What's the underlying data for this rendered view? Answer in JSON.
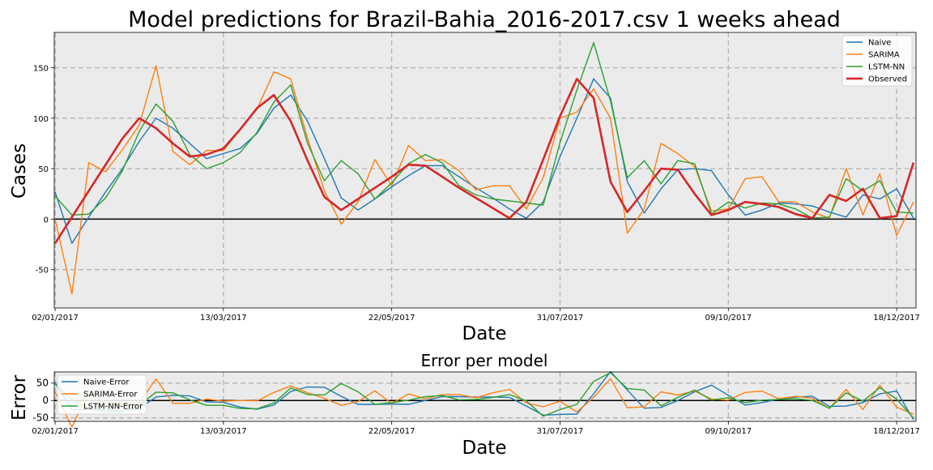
{
  "chart_data": [
    {
      "type": "line",
      "title": "Model predictions for Brazil-Bahia_2016-2017.csv 1 weeks ahead",
      "xlabel": "Date",
      "ylabel": "Cases",
      "ylim": [
        -88,
        185
      ],
      "x_tick_labels": [
        "02/01/2017",
        "13/03/2017",
        "22/05/2017",
        "31/07/2017",
        "09/10/2017",
        "18/12/2017"
      ],
      "y_ticks": [
        -50,
        0,
        50,
        100,
        150
      ],
      "grid": true,
      "legend_position": "top-right",
      "x_unit": "weeks since 02/01/2017",
      "series": [
        {
          "name": "Naive",
          "color": "#1f77b4",
          "x": [
            0,
            1,
            2,
            3,
            4,
            5,
            6,
            7,
            8,
            9,
            10,
            11,
            12,
            13,
            14,
            15,
            16,
            17,
            18,
            19,
            20,
            21,
            22,
            23,
            24,
            25,
            26,
            27,
            28,
            29,
            30,
            31,
            32,
            33,
            34,
            35,
            36,
            37,
            38,
            39,
            40,
            41,
            42,
            43,
            44,
            45,
            46,
            47,
            48,
            49,
            50,
            51
          ],
          "values": [
            27,
            -24,
            2,
            27,
            50,
            77,
            100,
            90,
            75,
            60,
            65,
            70,
            85,
            110,
            123,
            97,
            60,
            21,
            9,
            20,
            32,
            43,
            53,
            53,
            42,
            31,
            21,
            10,
            1,
            17,
            62,
            100,
            139,
            120,
            37,
            6,
            30,
            49,
            50,
            48,
            24,
            4,
            9,
            16,
            15,
            13,
            7,
            2,
            24,
            20,
            30,
            1
          ]
        },
        {
          "name": "SARIMA",
          "color": "#ff7f0e",
          "x": [
            0,
            1,
            2,
            3,
            4,
            5,
            6,
            7,
            8,
            9,
            10,
            11,
            12,
            13,
            14,
            15,
            16,
            17,
            18,
            19,
            20,
            21,
            22,
            23,
            24,
            25,
            26,
            27,
            28,
            29,
            30,
            31,
            32,
            33,
            34,
            35,
            36,
            37,
            38,
            39,
            40,
            41,
            42,
            43,
            44,
            45,
            46,
            47,
            48,
            49,
            50,
            51
          ],
          "values": [
            0,
            -74,
            56,
            47,
            69,
            93,
            152,
            67,
            54,
            68,
            68,
            89,
            109,
            146,
            139,
            80,
            28,
            -5,
            17,
            59,
            33,
            73,
            58,
            59,
            48,
            29,
            33,
            33,
            10,
            41,
            100,
            106,
            129,
            100,
            -14,
            10,
            75,
            65,
            52,
            8,
            10,
            40,
            42,
            17,
            17,
            7,
            1,
            50,
            4,
            45,
            -16,
            17
          ]
        },
        {
          "name": "LSTM-NN",
          "color": "#2ca02c",
          "x": [
            0,
            1,
            2,
            3,
            4,
            5,
            6,
            7,
            8,
            9,
            10,
            11,
            12,
            13,
            14,
            15,
            16,
            17,
            18,
            19,
            20,
            21,
            22,
            23,
            24,
            25,
            26,
            27,
            28,
            29,
            30,
            31,
            32,
            33,
            34,
            35,
            36,
            37,
            38,
            39,
            40,
            41,
            42,
            43,
            44,
            45,
            46,
            47,
            48,
            49,
            50,
            51
          ],
          "values": [
            23,
            4,
            5,
            21,
            48,
            87,
            114,
            97,
            64,
            50,
            56,
            66,
            86,
            116,
            133,
            75,
            38,
            58,
            45,
            20,
            36,
            55,
            64,
            56,
            33,
            24,
            20,
            18,
            16,
            14,
            76,
            128,
            175,
            117,
            41,
            58,
            35,
            58,
            55,
            5,
            17,
            11,
            16,
            15,
            10,
            1,
            2,
            40,
            28,
            38,
            7,
            6
          ]
        },
        {
          "name": "Observed",
          "color": "#d62728",
          "x": [
            0,
            1,
            2,
            3,
            4,
            5,
            6,
            7,
            8,
            9,
            10,
            11,
            12,
            13,
            14,
            15,
            16,
            17,
            18,
            19,
            20,
            21,
            22,
            23,
            24,
            25,
            26,
            27,
            28,
            29,
            30,
            31,
            32,
            33,
            34,
            35,
            36,
            37,
            38,
            39,
            40,
            41,
            42,
            43,
            44,
            45,
            46,
            47,
            48,
            49,
            50,
            51
          ],
          "values": [
            -24,
            2,
            28,
            54,
            80,
            100,
            90,
            75,
            62,
            64,
            70,
            89,
            110,
            123,
            97,
            58,
            22,
            9,
            20,
            31,
            42,
            54,
            53,
            42,
            31,
            21,
            11,
            1,
            17,
            59,
            102,
            139,
            120,
            37,
            7,
            28,
            50,
            49,
            25,
            4,
            9,
            17,
            15,
            12,
            5,
            1,
            24,
            18,
            30,
            1,
            3,
            56
          ]
        }
      ]
    },
    {
      "type": "line",
      "title": "Error per model",
      "xlabel": "Date",
      "ylabel": "Error",
      "ylim": [
        -60,
        82
      ],
      "x_tick_labels": [
        "02/01/2017",
        "13/03/2017",
        "22/05/2017",
        "31/07/2017",
        "09/10/2017",
        "18/12/2017"
      ],
      "y_ticks": [
        -50,
        0,
        50
      ],
      "grid": true,
      "legend_position": "top-left",
      "x_unit": "weeks since 02/01/2017",
      "series": [
        {
          "name": "Naive-Error",
          "color": "#1f77b4",
          "x": [
            0,
            1,
            2,
            3,
            4,
            5,
            6,
            7,
            8,
            9,
            10,
            11,
            12,
            13,
            14,
            15,
            16,
            17,
            18,
            19,
            20,
            21,
            22,
            23,
            24,
            25,
            26,
            27,
            28,
            29,
            30,
            31,
            32,
            33,
            34,
            35,
            36,
            37,
            38,
            39,
            40,
            41,
            42,
            43,
            44,
            45,
            46,
            47,
            48,
            49,
            50,
            51
          ],
          "values": [
            51,
            -26,
            -26,
            -27,
            -30,
            -23,
            10,
            15,
            13,
            -4,
            -5,
            -19,
            -25,
            -13,
            26,
            39,
            38,
            12,
            -11,
            -11,
            -10,
            -11,
            0,
            11,
            11,
            10,
            10,
            9,
            -16,
            -42,
            -40,
            -39,
            19,
            83,
            30,
            -22,
            -20,
            0,
            25,
            44,
            15,
            -13,
            -6,
            4,
            10,
            12,
            -17,
            -16,
            -6,
            19,
            27,
            -55
          ]
        },
        {
          "name": "SARIMA-Error",
          "color": "#ff7f0e",
          "x": [
            0,
            1,
            2,
            3,
            4,
            5,
            6,
            7,
            8,
            9,
            10,
            11,
            12,
            13,
            14,
            15,
            16,
            17,
            18,
            19,
            20,
            21,
            22,
            23,
            24,
            25,
            26,
            27,
            28,
            29,
            30,
            31,
            32,
            33,
            34,
            35,
            36,
            37,
            38,
            39,
            40,
            41,
            42,
            43,
            44,
            45,
            46,
            47,
            48,
            49,
            50,
            51
          ],
          "values": [
            24,
            -76,
            28,
            -7,
            -11,
            -7,
            62,
            -8,
            -8,
            4,
            -2,
            0,
            -1,
            23,
            42,
            22,
            6,
            -14,
            -3,
            28,
            -9,
            19,
            5,
            17,
            17,
            8,
            22,
            32,
            -7,
            -18,
            -2,
            -33,
            9,
            63,
            -21,
            -18,
            25,
            16,
            27,
            4,
            1,
            23,
            27,
            5,
            12,
            6,
            -23,
            32,
            -26,
            44,
            -19,
            -39
          ]
        },
        {
          "name": "LSTM-NN-Error",
          "color": "#2ca02c",
          "x": [
            0,
            1,
            2,
            3,
            4,
            5,
            6,
            7,
            8,
            9,
            10,
            11,
            12,
            13,
            14,
            15,
            16,
            17,
            18,
            19,
            20,
            21,
            22,
            23,
            24,
            25,
            26,
            27,
            28,
            29,
            30,
            31,
            32,
            33,
            34,
            35,
            36,
            37,
            38,
            39,
            40,
            41,
            42,
            43,
            44,
            45,
            46,
            47,
            48,
            49,
            50,
            51
          ],
          "values": [
            47,
            2,
            -23,
            -33,
            -32,
            -13,
            24,
            22,
            2,
            -14,
            -14,
            -23,
            -24,
            -7,
            36,
            17,
            16,
            49,
            25,
            -11,
            -6,
            1,
            11,
            14,
            2,
            3,
            9,
            17,
            -1,
            -45,
            -26,
            -11,
            55,
            80,
            34,
            30,
            -15,
            9,
            30,
            1,
            8,
            -6,
            1,
            3,
            5,
            0,
            -22,
            22,
            -2,
            37,
            4,
            -50
          ]
        }
      ]
    }
  ]
}
